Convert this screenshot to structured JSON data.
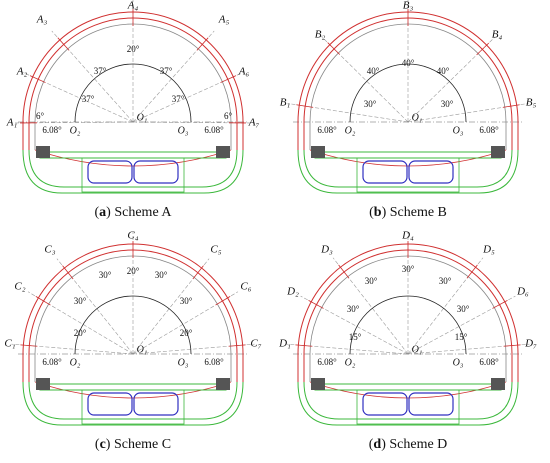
{
  "panels": [
    {
      "points": [
        "A₁",
        "A₂",
        "A₃",
        "A₄",
        "A₅",
        "A₆",
        "A₇"
      ],
      "angles": [
        "37°",
        "37°",
        "20°",
        "37°",
        "37°",
        "6°",
        "6°",
        "6.08°",
        "6.08°"
      ],
      "centers": [
        "O₁",
        "O₂",
        "O₃"
      ],
      "caption": {
        "open": "(",
        "letter": "a",
        "rest": ") Scheme A"
      }
    },
    {
      "points": [
        "B₁",
        "B₂",
        "B₃",
        "B₄",
        "B₅"
      ],
      "angles": [
        "30°",
        "40°",
        "40°",
        "40°",
        "30°",
        "6.08°",
        "6.08°"
      ],
      "centers": [
        "O₁",
        "O₂",
        "O₃"
      ],
      "caption": {
        "open": "(",
        "letter": "b",
        "rest": ") Scheme B"
      }
    },
    {
      "points": [
        "C₁",
        "C₂",
        "C₃",
        "C₄",
        "C₅",
        "C₆",
        "C₇"
      ],
      "angles": [
        "20°",
        "30°",
        "30°",
        "20°",
        "30°",
        "30°",
        "20°",
        "6.08°",
        "6.08°"
      ],
      "centers": [
        "O₁",
        "O₂",
        "O₃"
      ],
      "caption": {
        "open": "(",
        "letter": "c",
        "rest": ") Scheme C"
      }
    },
    {
      "points": [
        "D₁",
        "D₂",
        "D₃",
        "D₄",
        "D₅",
        "D₆",
        "D₇"
      ],
      "angles": [
        "15°",
        "30°",
        "30°",
        "30°",
        "30°",
        "30°",
        "15°",
        "6.08°",
        "6.08°"
      ],
      "centers": [
        "O₁",
        "O₂",
        "O₃"
      ],
      "caption": {
        "open": "(",
        "letter": "d",
        "rest": ") Scheme D"
      }
    }
  ]
}
